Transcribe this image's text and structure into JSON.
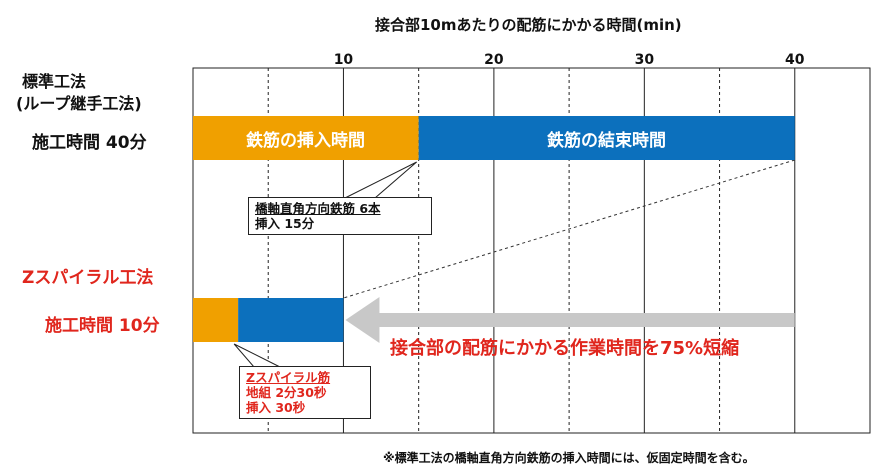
{
  "chart_data": {
    "type": "bar",
    "title": "接合部10mあたりの配筋にかかる時間(min)",
    "xlim": [
      0,
      45
    ],
    "ticks": [
      10,
      20,
      30,
      40
    ],
    "grid": true,
    "series": [
      {
        "name": "鉄筋の挿入時間",
        "color": "#f0a000"
      },
      {
        "name": "鉄筋の結束時間",
        "color": "#0c70bd"
      }
    ],
    "rows": [
      {
        "method": "標準工法",
        "method_sub": "(ループ継手工法)",
        "total_label": "施工時間 40分",
        "insert": 15,
        "bind": 25,
        "insert_label": "鉄筋の挿入時間",
        "bind_label": "鉄筋の結束時間"
      },
      {
        "method": "Zスパイラル工法",
        "total_label": "施工時間 10分",
        "insert": 3,
        "bind": 7
      }
    ],
    "callouts": {
      "standard": {
        "line1": "橋軸直角方向鉄筋 6本",
        "line2": "挿入 15分"
      },
      "z": {
        "title": "Zスパイラル筋",
        "line1": "地組 2分30秒",
        "line2": "挿入 30秒"
      }
    },
    "arrow_label": "接合部の配筋にかかる作業時間を75%短縮",
    "footnote": "※標準工法の橋軸直角方向鉄筋の挿入時間には、仮固定時間を含む。"
  },
  "colors": {
    "insert": "#f0a000",
    "bind": "#0c70bd",
    "arrow": "#c8c8c8",
    "red": "#e0261d"
  }
}
